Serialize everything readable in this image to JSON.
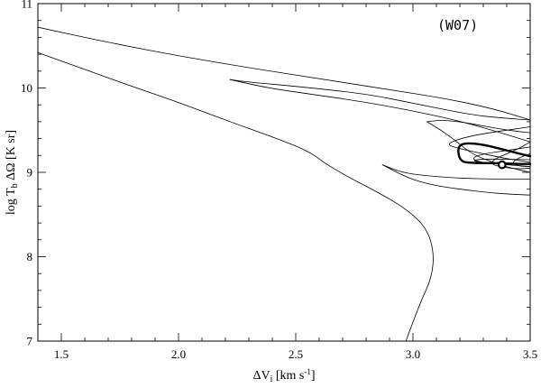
{
  "chart_data": {
    "type": "line",
    "title": "",
    "annotation": "(W07)",
    "xlabel": "ΔV_i [km s^-1]",
    "ylabel": "log T_b ΔΩ [K sr]",
    "xlim": [
      1.4,
      3.5
    ],
    "ylim": [
      7.0,
      11.0
    ],
    "x_ticks": [
      1.5,
      2.0,
      2.5,
      3.0,
      3.5
    ],
    "x_tick_labels": [
      "1.5",
      "2.0",
      "2.5",
      "3.0",
      "3.5"
    ],
    "y_ticks": [
      7,
      8,
      9,
      10,
      11
    ],
    "y_tick_labels": [
      "7",
      "8",
      "9",
      "10",
      "11"
    ],
    "grid": false,
    "best_fit_point": {
      "x": 3.38,
      "y": 9.09
    },
    "series": [
      {
        "points": [
          [
            1.4,
            10.72
          ],
          [
            1.7,
            10.54
          ],
          [
            2.0,
            10.38
          ],
          [
            2.3,
            10.24
          ],
          [
            2.6,
            10.11
          ],
          [
            2.9,
            9.98
          ],
          [
            3.15,
            9.87
          ],
          [
            3.35,
            9.75
          ],
          [
            3.5,
            9.62
          ]
        ]
      },
      {
        "points": [
          [
            3.5,
            9.62
          ],
          [
            3.4,
            9.64
          ],
          [
            3.25,
            9.68
          ],
          [
            3.0,
            9.82
          ],
          [
            2.8,
            9.93
          ],
          [
            2.5,
            10.02
          ],
          [
            2.3,
            10.07
          ],
          [
            2.22,
            10.1
          ]
        ]
      },
      {
        "points": [
          [
            2.22,
            10.1
          ],
          [
            2.38,
            10.0
          ],
          [
            2.58,
            9.92
          ],
          [
            2.78,
            9.84
          ],
          [
            2.98,
            9.74
          ],
          [
            3.18,
            9.62
          ],
          [
            3.34,
            9.5
          ],
          [
            3.5,
            9.36
          ]
        ]
      },
      {
        "points": [
          [
            1.4,
            10.42
          ],
          [
            1.6,
            10.22
          ],
          [
            1.8,
            10.02
          ],
          [
            2.0,
            9.83
          ],
          [
            2.2,
            9.62
          ],
          [
            2.4,
            9.42
          ],
          [
            2.55,
            9.26
          ],
          [
            2.63,
            9.1
          ]
        ]
      },
      {
        "points": [
          [
            2.63,
            9.1
          ],
          [
            2.72,
            8.95
          ],
          [
            2.86,
            8.75
          ],
          [
            2.98,
            8.55
          ],
          [
            3.06,
            8.33
          ],
          [
            3.09,
            8.05
          ],
          [
            3.08,
            7.75
          ],
          [
            3.03,
            7.45
          ],
          [
            2.97,
            7.0
          ]
        ]
      },
      {
        "points": [
          [
            3.5,
            9.47
          ],
          [
            3.4,
            9.5
          ],
          [
            3.3,
            9.55
          ],
          [
            3.2,
            9.6
          ],
          [
            3.12,
            9.62
          ],
          [
            3.06,
            9.6
          ]
        ]
      },
      {
        "points": [
          [
            3.06,
            9.6
          ],
          [
            3.12,
            9.5
          ],
          [
            3.18,
            9.38
          ],
          [
            3.24,
            9.24
          ],
          [
            3.3,
            9.16
          ],
          [
            3.36,
            9.1
          ],
          [
            3.42,
            9.05
          ],
          [
            3.5,
            9.0
          ]
        ]
      },
      {
        "points": [
          [
            3.5,
            9.54
          ],
          [
            3.3,
            9.46
          ],
          [
            3.2,
            9.4
          ],
          [
            3.14,
            9.33
          ],
          [
            3.2,
            9.28
          ],
          [
            3.3,
            9.22
          ],
          [
            3.4,
            9.16
          ],
          [
            3.5,
            9.12
          ]
        ]
      },
      {
        "points": [
          [
            2.87,
            9.09
          ],
          [
            2.95,
            9.0
          ],
          [
            3.05,
            8.96
          ],
          [
            3.2,
            8.93
          ],
          [
            3.35,
            8.92
          ],
          [
            3.5,
            8.92
          ]
        ]
      },
      {
        "points": [
          [
            2.87,
            9.09
          ],
          [
            2.98,
            8.93
          ],
          [
            3.08,
            8.85
          ],
          [
            3.2,
            8.8
          ],
          [
            3.35,
            8.75
          ],
          [
            3.5,
            8.73
          ]
        ]
      },
      {
        "points": [
          [
            3.5,
            9.36
          ],
          [
            3.45,
            9.28
          ],
          [
            3.4,
            9.22
          ],
          [
            3.35,
            9.16
          ],
          [
            3.33,
            9.1
          ],
          [
            3.38,
            9.06
          ],
          [
            3.45,
            9.04
          ],
          [
            3.5,
            9.05
          ]
        ]
      },
      {
        "points": [
          [
            3.5,
            9.22
          ],
          [
            3.45,
            9.17
          ],
          [
            3.42,
            9.11
          ],
          [
            3.46,
            9.07
          ],
          [
            3.5,
            9.07
          ]
        ]
      },
      {
        "points": [
          [
            3.5,
            9.3
          ],
          [
            3.4,
            9.26
          ],
          [
            3.3,
            9.22
          ],
          [
            3.25,
            9.17
          ],
          [
            3.28,
            9.12
          ],
          [
            3.4,
            9.09
          ],
          [
            3.5,
            9.07
          ]
        ]
      },
      {
        "points": [
          [
            3.5,
            9.15
          ],
          [
            3.3,
            9.16
          ],
          [
            3.25,
            9.14
          ],
          [
            3.3,
            9.11
          ],
          [
            3.42,
            9.1
          ],
          [
            3.5,
            9.1
          ]
        ]
      },
      {
        "points": [
          [
            3.5,
            9.19
          ],
          [
            3.4,
            9.26
          ],
          [
            3.3,
            9.33
          ],
          [
            3.22,
            9.35
          ],
          [
            3.19,
            9.3
          ],
          [
            3.2,
            9.13
          ],
          [
            3.25,
            9.11
          ],
          [
            3.35,
            9.11
          ],
          [
            3.45,
            9.1
          ],
          [
            3.5,
            9.1
          ]
        ],
        "bold": true
      }
    ]
  }
}
